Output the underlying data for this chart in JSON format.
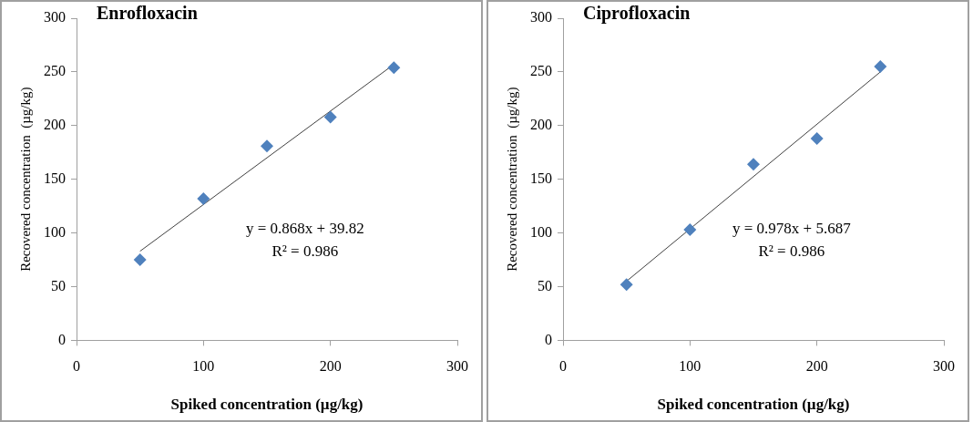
{
  "chart_data": [
    {
      "type": "scatter",
      "title": "Enrofloxacin",
      "xlabel": "Spiked concentration (µg/kg)",
      "ylabel": "Recovered concentration  (µg/kg)",
      "xlim": [
        0,
        300
      ],
      "xticks": [
        0,
        100,
        200,
        300
      ],
      "ylim": [
        0,
        300
      ],
      "yticks": [
        0,
        50,
        100,
        150,
        200,
        250,
        300
      ],
      "grid": false,
      "legend": false,
      "marker": "diamond",
      "annotations": [
        "y = 0.868x + 39.82",
        "R² = 0.986"
      ],
      "series": [
        {
          "color": "#4f81bd",
          "x": [
            50,
            100,
            150,
            200,
            250
          ],
          "values": [
            75,
            132,
            181,
            208,
            254
          ]
        },
        {
          "type": "line",
          "color": "#404040",
          "marker": "none",
          "line_style": "solid",
          "x": [
            50,
            250
          ],
          "values": [
            83,
            257
          ]
        }
      ]
    },
    {
      "type": "scatter",
      "title": "Ciprofloxacin",
      "xlabel": "Spiked concentration (µg/kg)",
      "ylabel": "Recovered concentration  (µg/kg)",
      "xlim": [
        0,
        300
      ],
      "xticks": [
        0,
        100,
        200,
        300
      ],
      "ylim": [
        0,
        300
      ],
      "yticks": [
        0,
        50,
        100,
        150,
        200,
        250,
        300
      ],
      "grid": false,
      "legend": false,
      "marker": "diamond",
      "annotations": [
        "y = 0.978x + 5.687",
        "R² = 0.986"
      ],
      "series": [
        {
          "color": "#4f81bd",
          "x": [
            50,
            100,
            150,
            200,
            250
          ],
          "values": [
            52,
            103,
            164,
            188,
            255
          ]
        },
        {
          "type": "line",
          "color": "#404040",
          "marker": "none",
          "line_style": "solid",
          "x": [
            50,
            250
          ],
          "values": [
            55,
            250
          ]
        }
      ]
    }
  ]
}
